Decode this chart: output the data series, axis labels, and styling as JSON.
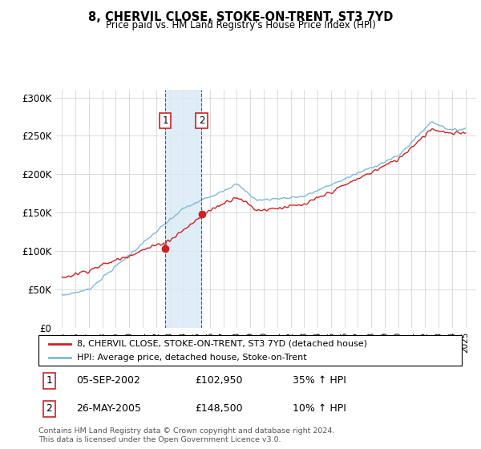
{
  "title": "8, CHERVIL CLOSE, STOKE-ON-TRENT, ST3 7YD",
  "subtitle": "Price paid vs. HM Land Registry's House Price Index (HPI)",
  "legend_line1": "8, CHERVIL CLOSE, STOKE-ON-TRENT, ST3 7YD (detached house)",
  "legend_line2": "HPI: Average price, detached house, Stoke-on-Trent",
  "transaction1_date": "05-SEP-2002",
  "transaction1_price": "£102,950",
  "transaction1_hpi": "35% ↑ HPI",
  "transaction2_date": "26-MAY-2005",
  "transaction2_price": "£148,500",
  "transaction2_hpi": "10% ↑ HPI",
  "footer": "Contains HM Land Registry data © Crown copyright and database right 2024.\nThis data is licensed under the Open Government Licence v3.0.",
  "ylim": [
    0,
    310000
  ],
  "yticks": [
    0,
    50000,
    100000,
    150000,
    200000,
    250000,
    300000
  ],
  "ytick_labels": [
    "£0",
    "£50K",
    "£100K",
    "£150K",
    "£200K",
    "£250K",
    "£300K"
  ],
  "hpi_color": "#7fb9d8",
  "price_color": "#cc2222",
  "shade_color": "#daeaf5",
  "transaction1_x": 2002.67,
  "transaction2_x": 2005.38,
  "background_color": "#ffffff",
  "grid_color": "#cccccc",
  "xtick_start": 1995,
  "xtick_end": 2025,
  "xlim_left": 1994.5,
  "xlim_right": 2025.8
}
